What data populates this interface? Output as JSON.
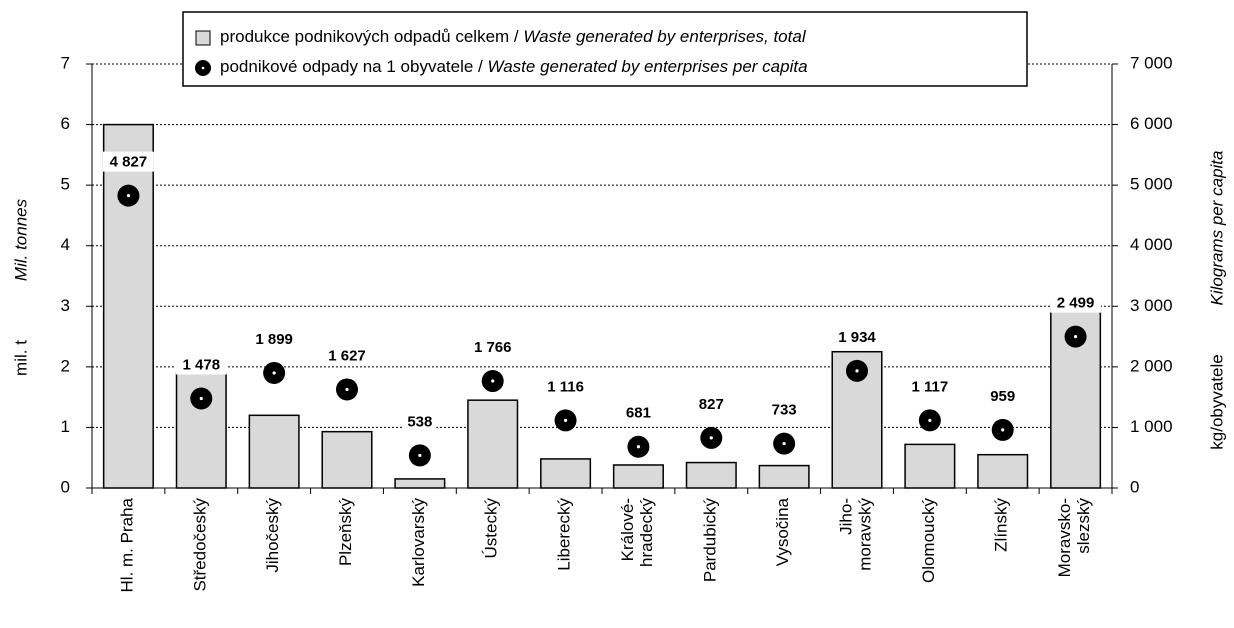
{
  "chart_data": {
    "type": "bar",
    "categories": [
      "Hl. m. Praha",
      "Středočeský",
      "Jihočeský",
      "Plzeňský",
      "Karlovarský",
      "Ústecký",
      "Liberecký",
      "Králové-\nhradecký",
      "Pardubický",
      "Vysočina",
      "Jiho-\nmoravský",
      "Olomoucký",
      "Zlínský",
      "Moravsko-\nslezský"
    ],
    "series": [
      {
        "name": "produkce podnikových odpadů celkem / Waste generated by enterprises, total",
        "color": "#d9d9d9",
        "values": [
          6.0,
          1.9,
          1.2,
          0.93,
          0.15,
          1.45,
          0.48,
          0.38,
          0.42,
          0.37,
          2.25,
          0.72,
          0.55,
          3.05
        ]
      },
      {
        "name": "podnikové odpady na 1 obyvatele / Waste generated by enterprises per capita",
        "color": "#000000",
        "axis": "y2",
        "type": "scatter",
        "values": [
          4827,
          1478,
          1899,
          1627,
          538,
          1766,
          1116,
          681,
          827,
          733,
          1934,
          1117,
          959,
          2499
        ],
        "value_labels": [
          "4 827",
          "1 478",
          "1 899",
          "1 627",
          "538",
          "1 766",
          "1 116",
          "681",
          "827",
          "733",
          "1 934",
          "1 117",
          "959",
          "2 499"
        ]
      }
    ],
    "y_label": "mil. t",
    "y_label_en": "Mil. tonnes",
    "y2_label": "kg/obyvatele",
    "y2_label_en": "Kilograms per capita",
    "ylim": [
      0,
      7
    ],
    "yticks": [
      0,
      1,
      2,
      3,
      4,
      5,
      6,
      7
    ],
    "y2lim": [
      0,
      7000
    ],
    "y2ticks": [
      0,
      {
        "value": 1000,
        "label": "1 000"
      },
      {
        "value": 2000,
        "label": "2 000"
      },
      {
        "value": 3000,
        "label": "3 000"
      },
      {
        "value": 4000,
        "label": "4 000"
      },
      {
        "value": 5000,
        "label": "5 000"
      },
      {
        "value": 6000,
        "label": "6 000"
      },
      {
        "value": 7000,
        "label": "7 000"
      }
    ],
    "grid": true,
    "legend": "top"
  }
}
